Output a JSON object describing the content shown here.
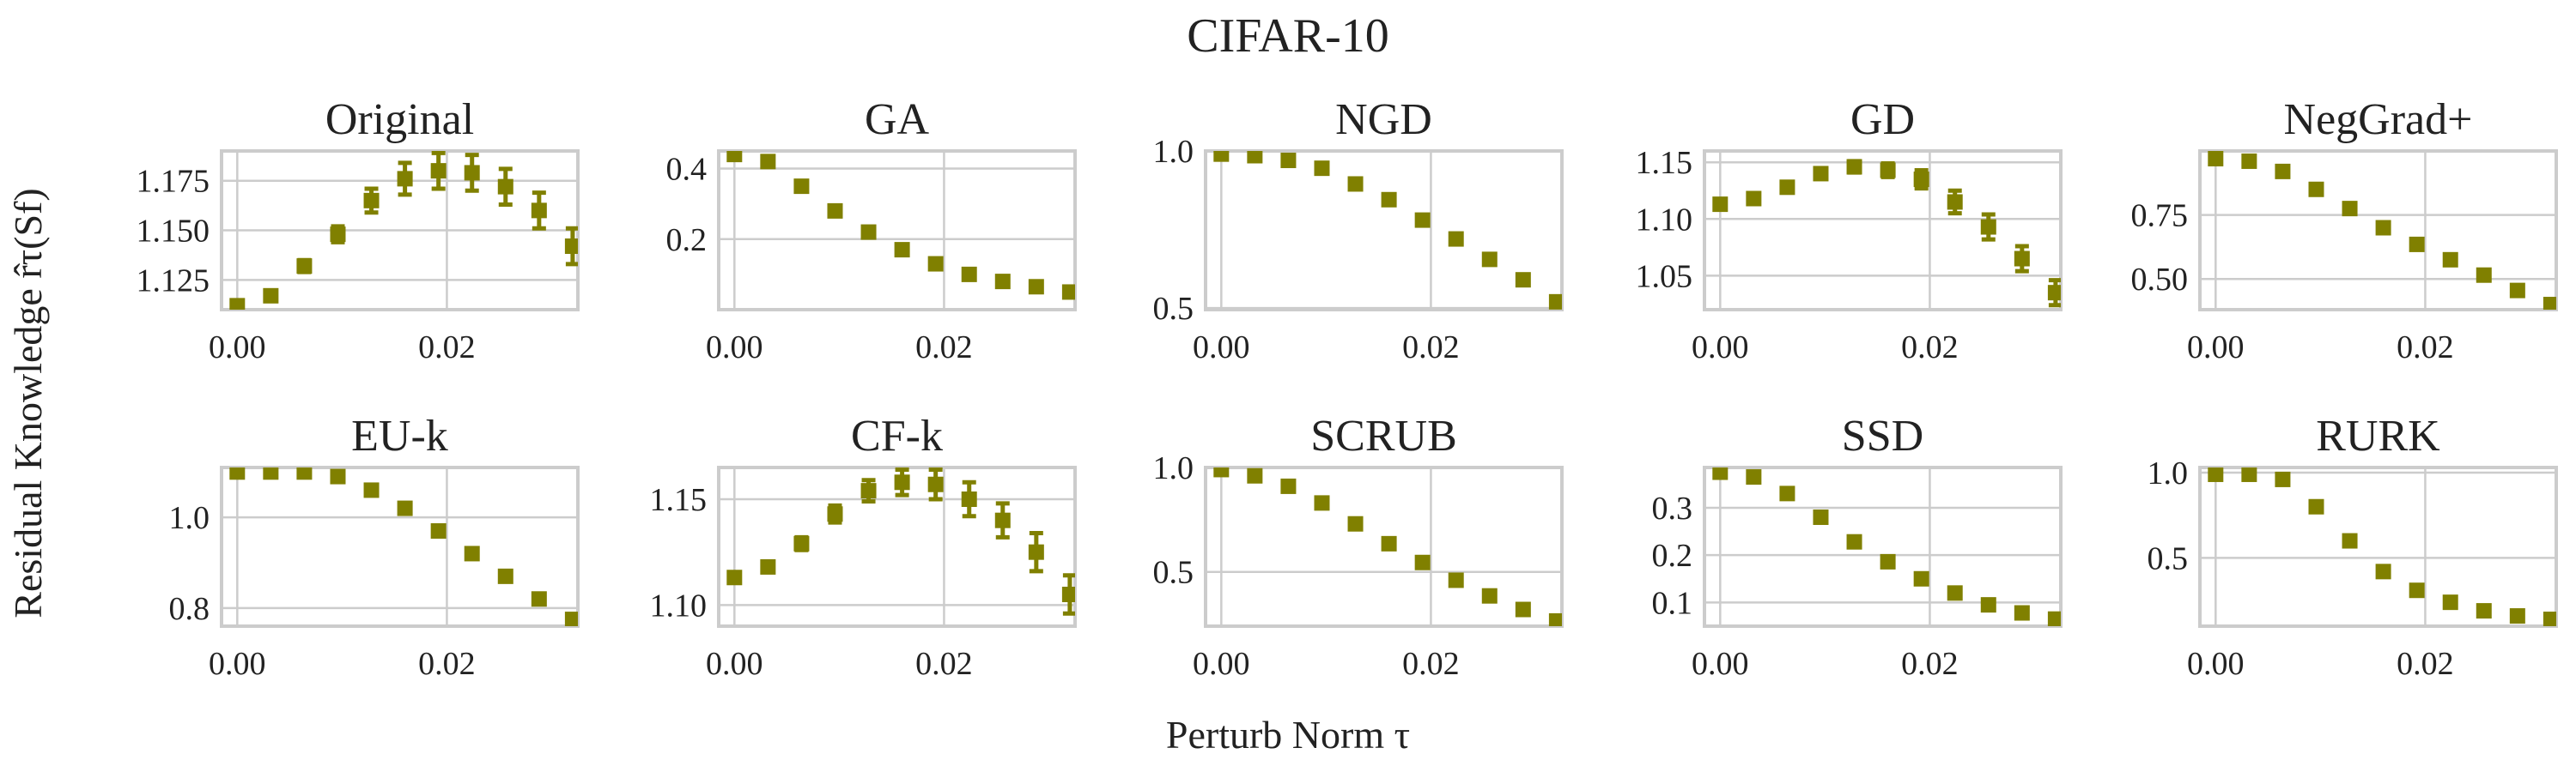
{
  "suptitle": "CIFAR-10",
  "xlabel": "Perturb Norm τ",
  "ylabel": "Residual Knowledge r̂τ(Sf)",
  "marker_color": "#808000",
  "chart_data": [
    {
      "type": "scatter",
      "title": "Original",
      "xlim": [
        -0.0015,
        0.0325
      ],
      "ylim": [
        1.11,
        1.19
      ],
      "xticks": [
        0.0,
        0.02
      ],
      "xticklabels": [
        "0.00",
        "0.02"
      ],
      "yticks": [
        1.125,
        1.15,
        1.175
      ],
      "yticklabels": [
        "1.125",
        "1.150",
        "1.175"
      ],
      "x": [
        0.0,
        0.0032,
        0.0064,
        0.0096,
        0.0128,
        0.016,
        0.0192,
        0.0224,
        0.0256,
        0.0288,
        0.032
      ],
      "y": [
        1.112,
        1.117,
        1.132,
        1.148,
        1.165,
        1.176,
        1.18,
        1.179,
        1.172,
        1.16,
        1.142
      ],
      "err": [
        0.001,
        0.002,
        0.003,
        0.004,
        0.006,
        0.008,
        0.009,
        0.009,
        0.009,
        0.009,
        0.009
      ]
    },
    {
      "type": "scatter",
      "title": "GA",
      "xlim": [
        -0.0015,
        0.0325
      ],
      "ylim": [
        0.0,
        0.45
      ],
      "xticks": [
        0.0,
        0.02
      ],
      "xticklabels": [
        "0.00",
        "0.02"
      ],
      "yticks": [
        0.2,
        0.4
      ],
      "yticklabels": [
        "0.2",
        "0.4"
      ],
      "x": [
        0.0,
        0.0032,
        0.0064,
        0.0096,
        0.0128,
        0.016,
        0.0192,
        0.0224,
        0.0256,
        0.0288,
        0.032
      ],
      "y": [
        0.44,
        0.42,
        0.35,
        0.28,
        0.22,
        0.17,
        0.13,
        0.1,
        0.08,
        0.065,
        0.05
      ],
      "err": [
        0.006,
        0.006,
        0.006,
        0.006,
        0.006,
        0.006,
        0.006,
        0.006,
        0.006,
        0.006,
        0.006
      ]
    },
    {
      "type": "scatter",
      "title": "NGD",
      "xlim": [
        -0.0015,
        0.0325
      ],
      "ylim": [
        0.495,
        1.0
      ],
      "xticks": [
        0.0,
        0.02
      ],
      "xticklabels": [
        "0.00",
        "0.02"
      ],
      "yticks": [
        0.5,
        1.0
      ],
      "yticklabels": [
        "0.5",
        "1.0"
      ],
      "x": [
        0.0,
        0.0032,
        0.0064,
        0.0096,
        0.0128,
        0.016,
        0.0192,
        0.0224,
        0.0256,
        0.0288,
        0.032
      ],
      "y": [
        0.99,
        0.985,
        0.97,
        0.945,
        0.895,
        0.845,
        0.78,
        0.72,
        0.655,
        0.59,
        0.52
      ],
      "err": [
        0.006,
        0.006,
        0.006,
        0.006,
        0.006,
        0.006,
        0.006,
        0.006,
        0.006,
        0.006,
        0.006
      ]
    },
    {
      "type": "scatter",
      "title": "GD",
      "xlim": [
        -0.0015,
        0.0325
      ],
      "ylim": [
        1.02,
        1.16
      ],
      "xticks": [
        0.0,
        0.02
      ],
      "xticklabels": [
        "0.00",
        "0.02"
      ],
      "yticks": [
        1.05,
        1.1,
        1.15
      ],
      "yticklabels": [
        "1.05",
        "1.10",
        "1.15"
      ],
      "x": [
        0.0,
        0.0032,
        0.0064,
        0.0096,
        0.0128,
        0.016,
        0.0192,
        0.0224,
        0.0256,
        0.0288,
        0.032
      ],
      "y": [
        1.113,
        1.118,
        1.128,
        1.14,
        1.146,
        1.143,
        1.135,
        1.115,
        1.093,
        1.065,
        1.035
      ],
      "err": [
        0.002,
        0.003,
        0.003,
        0.004,
        0.005,
        0.006,
        0.008,
        0.01,
        0.011,
        0.011,
        0.011
      ]
    },
    {
      "type": "scatter",
      "title": "NegGrad+",
      "xlim": [
        -0.0015,
        0.0325
      ],
      "ylim": [
        0.38,
        1.0
      ],
      "xticks": [
        0.0,
        0.02
      ],
      "xticklabels": [
        "0.00",
        "0.02"
      ],
      "yticks": [
        0.5,
        0.75
      ],
      "yticklabels": [
        "0.50",
        "0.75"
      ],
      "x": [
        0.0,
        0.0032,
        0.0064,
        0.0096,
        0.0128,
        0.016,
        0.0192,
        0.0224,
        0.0256,
        0.0288,
        0.032
      ],
      "y": [
        0.97,
        0.96,
        0.92,
        0.85,
        0.775,
        0.7,
        0.635,
        0.575,
        0.515,
        0.455,
        0.4
      ],
      "err": [
        0.008,
        0.008,
        0.008,
        0.008,
        0.008,
        0.008,
        0.008,
        0.008,
        0.008,
        0.008,
        0.008
      ]
    },
    {
      "type": "scatter",
      "title": "EU-k",
      "xlim": [
        -0.0015,
        0.0325
      ],
      "ylim": [
        0.76,
        1.11
      ],
      "xticks": [
        0.0,
        0.02
      ],
      "xticklabels": [
        "0.00",
        "0.02"
      ],
      "yticks": [
        0.8,
        1.0
      ],
      "yticklabels": [
        "0.8",
        "1.0"
      ],
      "x": [
        0.0,
        0.0032,
        0.0064,
        0.0096,
        0.0128,
        0.016,
        0.0192,
        0.0224,
        0.0256,
        0.0288,
        0.032
      ],
      "y": [
        1.1,
        1.1,
        1.1,
        1.09,
        1.06,
        1.02,
        0.97,
        0.92,
        0.87,
        0.82,
        0.775
      ],
      "err": [
        0.005,
        0.005,
        0.005,
        0.005,
        0.005,
        0.005,
        0.005,
        0.005,
        0.005,
        0.005,
        0.005
      ]
    },
    {
      "type": "scatter",
      "title": "CF-k",
      "xlim": [
        -0.0015,
        0.0325
      ],
      "ylim": [
        1.09,
        1.165
      ],
      "xticks": [
        0.0,
        0.02
      ],
      "xticklabels": [
        "0.00",
        "0.02"
      ],
      "yticks": [
        1.1,
        1.15
      ],
      "yticklabels": [
        "1.10",
        "1.15"
      ],
      "x": [
        0.0,
        0.0032,
        0.0064,
        0.0096,
        0.0128,
        0.016,
        0.0192,
        0.0224,
        0.0256,
        0.0288,
        0.032
      ],
      "y": [
        1.113,
        1.118,
        1.129,
        1.143,
        1.154,
        1.158,
        1.157,
        1.15,
        1.14,
        1.125,
        1.105
      ],
      "err": [
        0.002,
        0.002,
        0.003,
        0.004,
        0.005,
        0.006,
        0.007,
        0.008,
        0.008,
        0.009,
        0.009
      ]
    },
    {
      "type": "scatter",
      "title": "SCRUB",
      "xlim": [
        -0.0015,
        0.0325
      ],
      "ylim": [
        0.24,
        1.0
      ],
      "xticks": [
        0.0,
        0.02
      ],
      "xticklabels": [
        "0.00",
        "0.02"
      ],
      "yticks": [
        0.5,
        1.0
      ],
      "yticklabels": [
        "0.5",
        "1.0"
      ],
      "x": [
        0.0,
        0.0032,
        0.0064,
        0.0096,
        0.0128,
        0.016,
        0.0192,
        0.0224,
        0.0256,
        0.0288,
        0.032
      ],
      "y": [
        0.99,
        0.96,
        0.91,
        0.83,
        0.73,
        0.635,
        0.545,
        0.46,
        0.385,
        0.32,
        0.265
      ],
      "err": [
        0.008,
        0.008,
        0.008,
        0.008,
        0.008,
        0.008,
        0.008,
        0.008,
        0.008,
        0.008,
        0.008
      ]
    },
    {
      "type": "scatter",
      "title": "SSD",
      "xlim": [
        -0.0015,
        0.0325
      ],
      "ylim": [
        0.05,
        0.385
      ],
      "xticks": [
        0.0,
        0.02
      ],
      "xticklabels": [
        "0.00",
        "0.02"
      ],
      "yticks": [
        0.1,
        0.2,
        0.3
      ],
      "yticklabels": [
        "0.1",
        "0.2",
        "0.3"
      ],
      "x": [
        0.0,
        0.0032,
        0.0064,
        0.0096,
        0.0128,
        0.016,
        0.0192,
        0.0224,
        0.0256,
        0.0288,
        0.032
      ],
      "y": [
        0.375,
        0.365,
        0.33,
        0.28,
        0.228,
        0.186,
        0.15,
        0.12,
        0.095,
        0.078,
        0.065
      ],
      "err": [
        0.004,
        0.004,
        0.004,
        0.004,
        0.004,
        0.004,
        0.004,
        0.004,
        0.004,
        0.004,
        0.004
      ]
    },
    {
      "type": "scatter",
      "title": "RURK",
      "xlim": [
        -0.0015,
        0.0325
      ],
      "ylim": [
        0.1,
        1.03
      ],
      "xticks": [
        0.0,
        0.02
      ],
      "xticklabels": [
        "0.00",
        "0.02"
      ],
      "yticks": [
        0.5,
        1.0
      ],
      "yticklabels": [
        "0.5",
        "1.0"
      ],
      "x": [
        0.0,
        0.0032,
        0.0064,
        0.0096,
        0.0128,
        0.016,
        0.0192,
        0.0224,
        0.0256,
        0.0288,
        0.032
      ],
      "y": [
        0.99,
        0.99,
        0.96,
        0.8,
        0.6,
        0.42,
        0.31,
        0.24,
        0.19,
        0.16,
        0.14
      ],
      "err": [
        0.01,
        0.01,
        0.01,
        0.01,
        0.01,
        0.01,
        0.01,
        0.01,
        0.01,
        0.01,
        0.01
      ]
    }
  ]
}
